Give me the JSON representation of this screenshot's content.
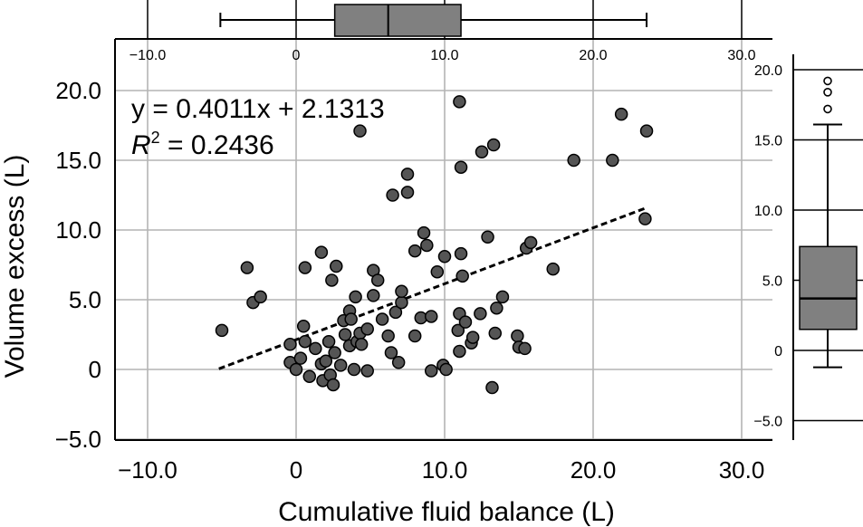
{
  "chart_data": [
    {
      "type": "scatter",
      "name": "main-scatter",
      "xlabel": "Cumulative fluid balance (L)",
      "ylabel": "Volume excess (L)",
      "xlim": [
        -12,
        32
      ],
      "ylim": [
        -5,
        22
      ],
      "xticks": [
        "−10.0",
        "0",
        "10.0",
        "20.0",
        "30.0"
      ],
      "xtick_values": [
        -10,
        0,
        10,
        20,
        30
      ],
      "yticks": [
        "20.0",
        "15.0",
        "10.0",
        "5.0",
        "0",
        "−5.0"
      ],
      "ytick_values": [
        20,
        15,
        10,
        5,
        0,
        -5
      ],
      "grid": true,
      "point_color": "#555555",
      "equation": "y = 0.4011x + 2.1313",
      "r2_symbol": "R",
      "r2_sup": "2",
      "r2_value": " = 0.2436",
      "trendline": {
        "slope": 0.4011,
        "intercept": 2.1313,
        "x_range": [
          -5.2,
          23.6
        ],
        "style": "dashed"
      },
      "points": [
        [
          -5.0,
          2.8
        ],
        [
          -3.3,
          7.3
        ],
        [
          -2.9,
          4.8
        ],
        [
          -2.4,
          5.2
        ],
        [
          -0.4,
          1.8
        ],
        [
          -0.4,
          0.5
        ],
        [
          0.0,
          0.0
        ],
        [
          0.3,
          0.8
        ],
        [
          0.5,
          3.1
        ],
        [
          0.6,
          2.0
        ],
        [
          0.6,
          7.3
        ],
        [
          0.9,
          -0.5
        ],
        [
          1.3,
          1.5
        ],
        [
          1.7,
          8.4
        ],
        [
          1.7,
          0.4
        ],
        [
          1.8,
          -0.8
        ],
        [
          2.0,
          0.6
        ],
        [
          2.2,
          2.0
        ],
        [
          2.3,
          -0.4
        ],
        [
          2.5,
          -1.1
        ],
        [
          2.4,
          6.4
        ],
        [
          2.6,
          1.2
        ],
        [
          2.7,
          7.4
        ],
        [
          3.0,
          0.3
        ],
        [
          3.2,
          3.5
        ],
        [
          3.3,
          2.5
        ],
        [
          3.6,
          4.2
        ],
        [
          3.6,
          1.7
        ],
        [
          3.7,
          3.6
        ],
        [
          3.9,
          0.0
        ],
        [
          4.0,
          5.2
        ],
        [
          4.1,
          2.0
        ],
        [
          4.3,
          17.1
        ],
        [
          4.3,
          2.6
        ],
        [
          4.4,
          1.8
        ],
        [
          4.8,
          2.9
        ],
        [
          4.8,
          -0.1
        ],
        [
          5.2,
          5.3
        ],
        [
          5.2,
          7.1
        ],
        [
          5.5,
          6.4
        ],
        [
          5.8,
          3.6
        ],
        [
          6.2,
          2.4
        ],
        [
          6.4,
          1.2
        ],
        [
          6.5,
          12.5
        ],
        [
          6.7,
          4.1
        ],
        [
          6.9,
          0.5
        ],
        [
          7.1,
          4.8
        ],
        [
          7.1,
          5.6
        ],
        [
          7.5,
          12.7
        ],
        [
          7.5,
          14.0
        ],
        [
          8.0,
          2.4
        ],
        [
          8.0,
          8.5
        ],
        [
          8.4,
          3.7
        ],
        [
          8.6,
          9.8
        ],
        [
          8.8,
          8.9
        ],
        [
          9.1,
          3.8
        ],
        [
          9.1,
          -0.1
        ],
        [
          9.5,
          7.0
        ],
        [
          9.9,
          0.3
        ],
        [
          10.0,
          8.1
        ],
        [
          10.1,
          0.0
        ],
        [
          11.0,
          19.2
        ],
        [
          10.9,
          2.8
        ],
        [
          11.0,
          1.3
        ],
        [
          11.0,
          4.0
        ],
        [
          11.1,
          14.5
        ],
        [
          11.1,
          8.3
        ],
        [
          11.2,
          6.7
        ],
        [
          11.4,
          3.4
        ],
        [
          11.8,
          1.9
        ],
        [
          11.9,
          2.3
        ],
        [
          12.4,
          4.0
        ],
        [
          12.5,
          15.6
        ],
        [
          12.9,
          9.5
        ],
        [
          13.2,
          -1.3
        ],
        [
          13.3,
          16.1
        ],
        [
          13.4,
          2.6
        ],
        [
          13.5,
          4.4
        ],
        [
          13.9,
          5.2
        ],
        [
          14.9,
          2.4
        ],
        [
          15.0,
          1.6
        ],
        [
          15.4,
          1.5
        ],
        [
          15.5,
          8.7
        ],
        [
          15.8,
          9.1
        ],
        [
          17.3,
          7.2
        ],
        [
          18.7,
          15.0
        ],
        [
          21.3,
          15.0
        ],
        [
          21.9,
          18.3
        ],
        [
          23.5,
          10.8
        ],
        [
          23.6,
          17.1
        ]
      ]
    },
    {
      "type": "box",
      "name": "top-boxplot",
      "axis": "Cumulative fluid balance (L)",
      "xlim": [
        -12,
        32
      ],
      "xticks": [
        "−10.0",
        "0",
        "10.0",
        "20.0",
        "30.0"
      ],
      "xtick_values": [
        -10,
        0,
        10,
        20,
        30
      ],
      "whisker_low": -5.1,
      "q1": 2.6,
      "median": 6.2,
      "q3": 11.1,
      "whisker_high": 23.6,
      "box_color": "#808080"
    },
    {
      "type": "box",
      "name": "right-boxplot",
      "axis": "Volume excess (L)",
      "ylim": [
        -7,
        21.5
      ],
      "yticks": [
        "20.0",
        "15.0",
        "10.0",
        "5.0",
        "0",
        "−5.0"
      ],
      "ytick_values": [
        20,
        15,
        10,
        5,
        0,
        -5
      ],
      "whisker_low": -1.2,
      "q1": 1.5,
      "median": 3.7,
      "q3": 7.4,
      "whisker_high": 16.1,
      "outliers": [
        17.2,
        18.4,
        19.2
      ],
      "box_color": "#808080"
    }
  ]
}
